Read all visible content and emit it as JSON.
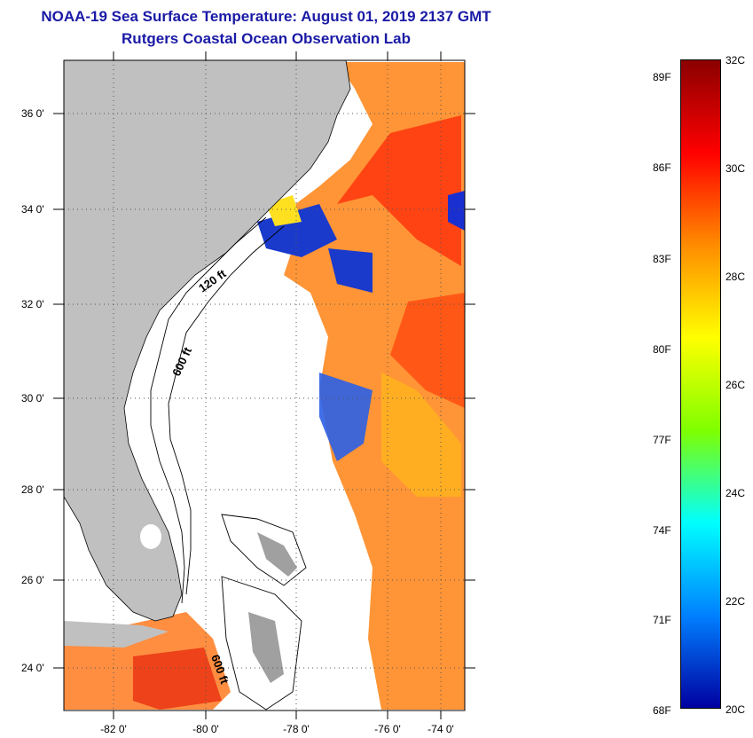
{
  "title": {
    "line1": "NOAA-19 Sea Surface Temperature:  August 01, 2019 2137 GMT",
    "line2": "Rutgers Coastal Ocean Observation Lab"
  },
  "map": {
    "lat_labels": [
      "36 0'",
      "34 0'",
      "32 0'",
      "30 0'",
      "28 0'",
      "26 0'",
      "24 0'"
    ],
    "lon_labels": [
      "-82 0'",
      "-80 0'",
      "-78 0'",
      "-76 0'",
      "-74 0'"
    ],
    "contour_labels": [
      "120 ft",
      "600 ft",
      "600 ft"
    ],
    "colors": {
      "land": "#c0c0c0",
      "no_data": "#ffffff",
      "grid": "#555555"
    }
  },
  "colorbar": {
    "celsius_labels": [
      "32C",
      "30C",
      "28C",
      "26C",
      "24C",
      "22C",
      "20C"
    ],
    "fahrenheit_labels": [
      "89F",
      "86F",
      "83F",
      "80F",
      "77F",
      "74F",
      "71F",
      "68F"
    ],
    "gradient_colors": [
      "#8b0000",
      "#ff0000",
      "#ff8c00",
      "#ffff00",
      "#7fff00",
      "#00ffff",
      "#0080ff",
      "#0000a0"
    ]
  }
}
